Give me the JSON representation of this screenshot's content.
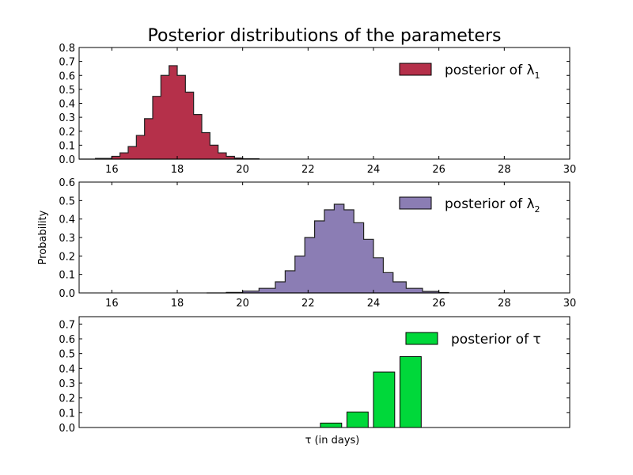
{
  "figure": {
    "title": "Posterior distributions of the parameters",
    "ylabel": "Probability"
  },
  "chart_data": [
    {
      "type": "area",
      "style": "step-histogram",
      "legend": {
        "label": "posterior of λ",
        "subscript": "1",
        "placement": "top-right",
        "color": "#b5304a"
      },
      "color": "#b5304a",
      "edge_color": "#222222",
      "xlim": [
        15,
        30
      ],
      "ylim": [
        0,
        0.8
      ],
      "xticks": [
        16,
        18,
        20,
        22,
        24,
        26,
        28,
        30
      ],
      "yticks": [
        0.0,
        0.1,
        0.2,
        0.3,
        0.4,
        0.5,
        0.6,
        0.7,
        0.8
      ],
      "grid": false,
      "x": [
        15.0,
        15.5,
        16.0,
        16.25,
        16.5,
        16.75,
        17.0,
        17.25,
        17.5,
        17.75,
        18.0,
        18.25,
        18.5,
        18.75,
        19.0,
        19.25,
        19.5,
        19.75,
        20.0,
        20.5
      ],
      "y": [
        0.0,
        0.005,
        0.02,
        0.045,
        0.09,
        0.17,
        0.29,
        0.45,
        0.6,
        0.67,
        0.6,
        0.48,
        0.32,
        0.19,
        0.1,
        0.045,
        0.02,
        0.008,
        0.003,
        0.0
      ]
    },
    {
      "type": "area",
      "style": "step-histogram",
      "legend": {
        "label": "posterior of λ",
        "subscript": "2",
        "placement": "top-right",
        "color": "#8b7db4"
      },
      "color": "#8b7db4",
      "edge_color": "#222222",
      "xlim": [
        15,
        30
      ],
      "ylim": [
        0,
        0.6
      ],
      "xticks": [
        16,
        18,
        20,
        22,
        24,
        26,
        28,
        30
      ],
      "yticks": [
        0.0,
        0.1,
        0.2,
        0.3,
        0.4,
        0.5,
        0.6
      ],
      "grid": false,
      "x": [
        18.9,
        19.5,
        20.0,
        20.5,
        21.0,
        21.3,
        21.6,
        21.9,
        22.2,
        22.5,
        22.8,
        23.1,
        23.4,
        23.7,
        24.0,
        24.3,
        24.6,
        25.0,
        25.5,
        26.0,
        26.3
      ],
      "y": [
        0.0,
        0.003,
        0.01,
        0.025,
        0.06,
        0.12,
        0.2,
        0.3,
        0.39,
        0.45,
        0.48,
        0.45,
        0.38,
        0.29,
        0.19,
        0.11,
        0.06,
        0.025,
        0.008,
        0.002,
        0.0
      ]
    },
    {
      "type": "bar",
      "legend": {
        "label": "posterior of τ",
        "placement": "top-right",
        "color": "#00d83a"
      },
      "color": "#00d83a",
      "edge_color": "#000000",
      "xlabel": "τ (in days)",
      "xlim": [
        0,
        18.5
      ],
      "ylim": [
        0,
        0.75
      ],
      "yticks": [
        0.0,
        0.1,
        0.2,
        0.3,
        0.4,
        0.5,
        0.6,
        0.7
      ],
      "xticks_visible": false,
      "grid": false,
      "x": [
        0,
        1,
        2,
        3,
        4,
        5,
        6,
        7,
        8,
        9,
        10,
        11,
        12,
        13,
        14,
        15,
        16,
        17
      ],
      "values": [
        0.0,
        0.0,
        0.0,
        0.0,
        0.0,
        0.0,
        0.0,
        0.0,
        0.0,
        0.03,
        0.105,
        0.375,
        0.48,
        0.0,
        0.0,
        0.0,
        0.0,
        0.0
      ]
    }
  ]
}
